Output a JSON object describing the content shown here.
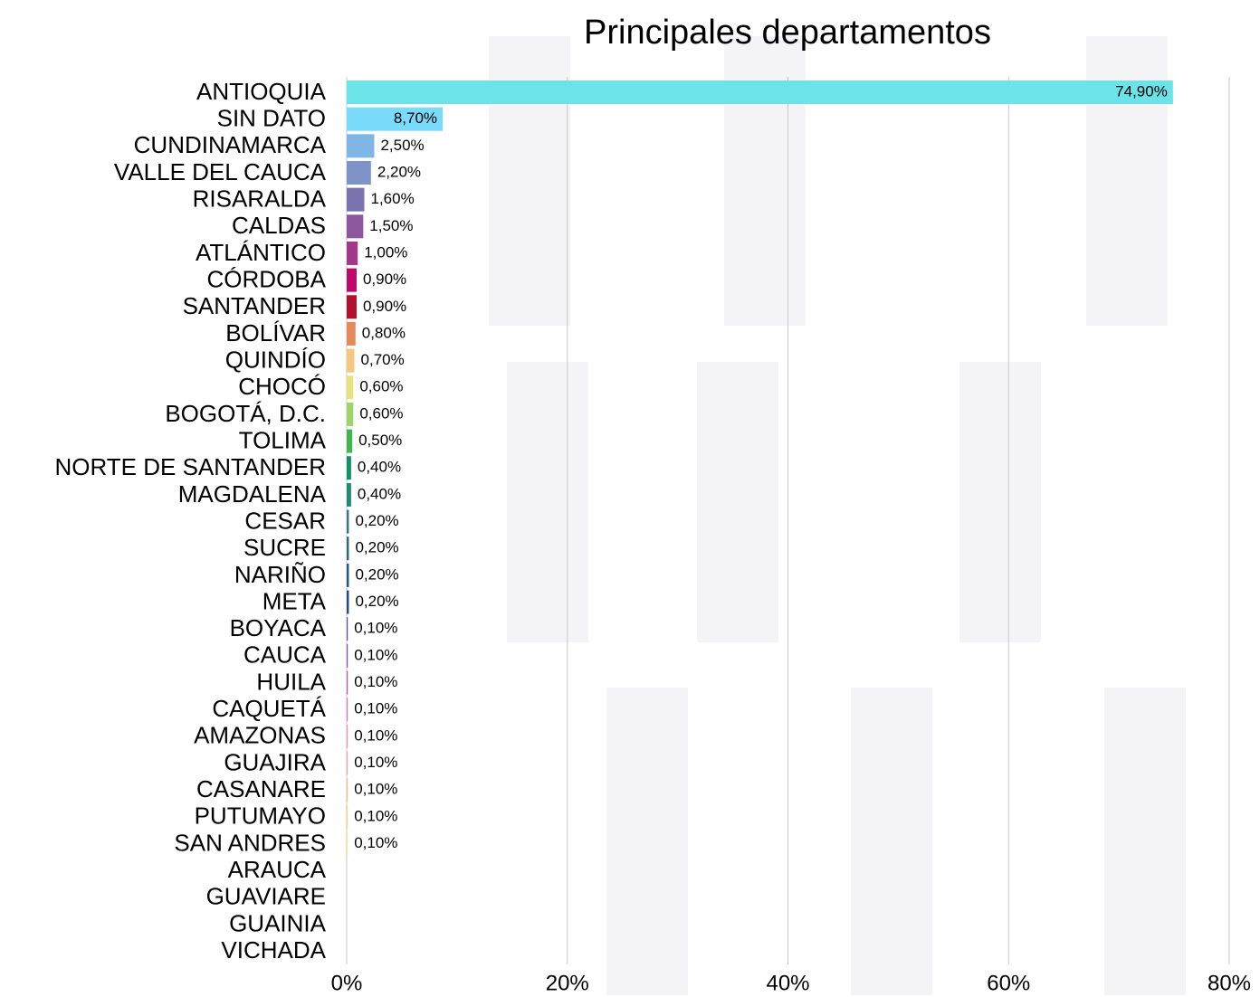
{
  "chart_data": {
    "type": "bar",
    "orientation": "horizontal",
    "title": "Principales departamentos",
    "categories": [
      "ANTIOQUIA",
      "SIN DATO",
      "CUNDINAMARCA",
      "VALLE DEL CAUCA",
      "RISARALDA",
      "CALDAS",
      "ATLÁNTICO",
      "CÓRDOBA",
      "SANTANDER",
      "BOLÍVAR",
      "QUINDÍO",
      "CHOCÓ",
      "BOGOTÁ, D.C.",
      "TOLIMA",
      "NORTE DE SANTANDER",
      "MAGDALENA",
      "CESAR",
      "SUCRE",
      "NARIÑO",
      "META",
      "BOYACA",
      "CAUCA",
      "HUILA",
      "CAQUETÁ",
      "AMAZONAS",
      "GUAJIRA",
      "CASANARE",
      "PUTUMAYO",
      "SAN ANDRES",
      "ARAUCA",
      "GUAVIARE",
      "GUAINIA",
      "VICHADA"
    ],
    "values": [
      74.9,
      8.7,
      2.5,
      2.2,
      1.6,
      1.5,
      1.0,
      0.9,
      0.9,
      0.8,
      0.7,
      0.6,
      0.6,
      0.5,
      0.4,
      0.4,
      0.2,
      0.2,
      0.2,
      0.2,
      0.1,
      0.1,
      0.1,
      0.1,
      0.1,
      0.1,
      0.1,
      0.1,
      0.1,
      0,
      0,
      0,
      0
    ],
    "value_labels": [
      "74,90%",
      "8,70%",
      "2,50%",
      "2,20%",
      "1,60%",
      "1,50%",
      "1,00%",
      "0,90%",
      "0,90%",
      "0,80%",
      "0,70%",
      "0,60%",
      "0,60%",
      "0,50%",
      "0,40%",
      "0,40%",
      "0,20%",
      "0,20%",
      "0,20%",
      "0,20%",
      "0,10%",
      "0,10%",
      "0,10%",
      "0,10%",
      "0,10%",
      "0,10%",
      "0,10%",
      "0,10%",
      "0,10%",
      null,
      null,
      null,
      null
    ],
    "colors": [
      "#6be3e8",
      "#79dafa",
      "#7fb6e6",
      "#7e93c8",
      "#7b72b0",
      "#8d57a0",
      "#a3388a",
      "#c0076a",
      "#b0102c",
      "#e8895a",
      "#f5c87e",
      "#e9e27c",
      "#9fd46a",
      "#3cb84e",
      "#0a9467",
      "#1f8a76",
      "#2f7c7a",
      "#2a6b7e",
      "#1b5a86",
      "#224a8a",
      "#5b4f9c",
      "#8a4da3",
      "#b55aa8",
      "#d47ab0",
      "#e594b5",
      "#eeaaa8",
      "#f0c08c",
      "#f0d880",
      "#e8ea8c",
      "#cccccc",
      "#cccccc",
      "#cccccc",
      "#cccccc"
    ],
    "xlim": [
      0,
      80
    ],
    "xticks": [
      {
        "value": 0,
        "label": "0%"
      },
      {
        "value": 20,
        "label": "20%"
      },
      {
        "value": 40,
        "label": "40%"
      },
      {
        "value": 60,
        "label": "60%"
      },
      {
        "value": 80,
        "label": "80%"
      }
    ],
    "grid": true
  }
}
